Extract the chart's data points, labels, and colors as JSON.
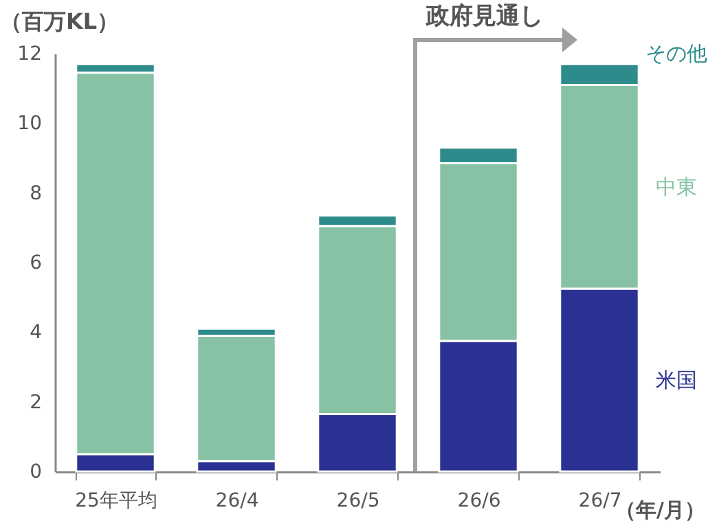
{
  "chart_data": {
    "type": "bar",
    "stacked": true,
    "ylabel": "（百万KL）",
    "xlabel": "（年/月）",
    "categories": [
      "25年平均",
      "26/4",
      "26/5",
      "26/6",
      "26/7"
    ],
    "series": [
      {
        "name": "米国",
        "color": "#2a3192",
        "values": [
          0.5,
          0.3,
          1.65,
          3.75,
          5.25
        ]
      },
      {
        "name": "中東",
        "color": "#87c2a4",
        "values": [
          10.95,
          3.6,
          5.4,
          5.1,
          5.85
        ]
      },
      {
        "name": "その他",
        "color": "#2e8b8b",
        "values": [
          0.25,
          0.2,
          0.3,
          0.45,
          0.6
        ]
      }
    ],
    "ylim": [
      0,
      12
    ],
    "yticks": [
      0,
      2,
      4,
      6,
      8,
      10,
      12
    ],
    "grid": false,
    "legend": false,
    "annotations": [
      "政府見通し"
    ]
  }
}
